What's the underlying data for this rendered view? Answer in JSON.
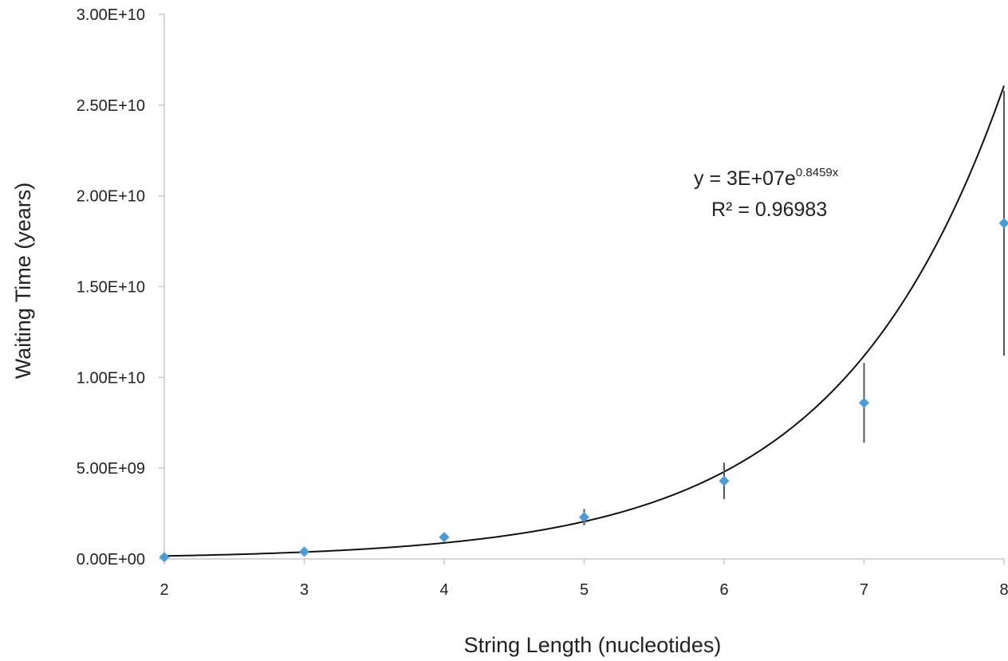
{
  "chart_data": {
    "type": "scatter",
    "xlabel": "String Length (nucleotides)",
    "ylabel": "Waiting Time (years)",
    "xlim": [
      2,
      8
    ],
    "ylim": [
      0,
      30000000000
    ],
    "x_ticks": [
      "2",
      "3",
      "4",
      "5",
      "6",
      "7",
      "8"
    ],
    "y_ticks": [
      "0.00E+00",
      "5.00E+09",
      "1.00E+10",
      "1.50E+10",
      "2.00E+10",
      "2.50E+10",
      "3.00E+10"
    ],
    "grid": false,
    "legend": "none",
    "series": [
      {
        "marker": "diamond",
        "color": "#4a9bd6",
        "x": [
          2,
          3,
          4,
          5,
          6,
          7,
          8
        ],
        "y": [
          100000000,
          400000000,
          1200000000,
          2300000000,
          4300000000,
          8600000000,
          18500000000
        ],
        "error": [
          0,
          0,
          150000000,
          450000000,
          1000000000,
          2200000000,
          7300000000
        ]
      }
    ],
    "trendline": {
      "type": "exponential",
      "a": 30000000,
      "b": 0.8459,
      "color": "#111111",
      "equation_prefix": "y = 3E+07e",
      "equation_exponent": "0.8459x",
      "r2_label": "R² = 0.96983"
    }
  }
}
